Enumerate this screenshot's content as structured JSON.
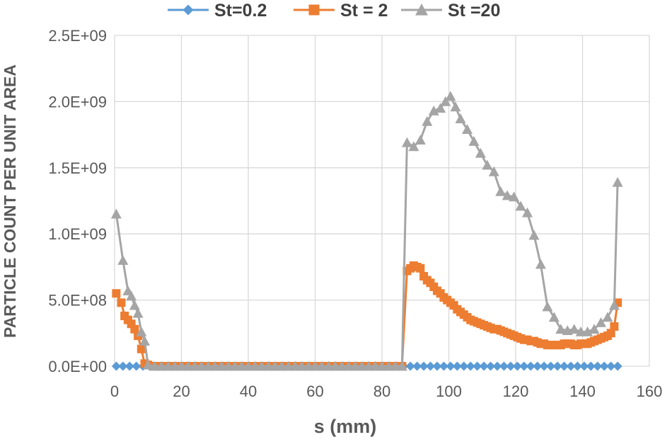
{
  "chart_data": {
    "type": "line",
    "title": "",
    "xlabel": "s (mm)",
    "ylabel": "PARTICLE COUNT PER UNIT AREA",
    "xlim": [
      0,
      160
    ],
    "ylim": [
      0,
      2500000000
    ],
    "x_ticks": [
      "0",
      "20",
      "40",
      "60",
      "80",
      "100",
      "120",
      "140",
      "160"
    ],
    "y_ticks": [
      "0.0E+00",
      "5.0E+08",
      "1.0E+09",
      "1.5E+09",
      "2.0E+09",
      "2.5E+09"
    ],
    "grid": true,
    "legend_position": "top",
    "series": [
      {
        "name": "St=0.2",
        "color": "#5B9BD5",
        "marker": "diamond",
        "x": [
          0.5,
          2.5,
          4.5,
          6.5,
          8.5,
          10.5,
          12.5,
          14.5,
          16.5,
          18.5,
          20.5,
          22.5,
          24.5,
          26.5,
          28.5,
          30.5,
          32.5,
          34.5,
          36.5,
          38.5,
          40.5,
          42.5,
          44.5,
          46.5,
          48.5,
          50.5,
          52.5,
          54.5,
          56.5,
          58.5,
          60.5,
          62.5,
          64.5,
          66.5,
          68.5,
          70.5,
          72.5,
          74.5,
          76.5,
          78.5,
          80.5,
          82.5,
          84.5,
          86.5,
          88.5,
          90.5,
          92.5,
          94.5,
          96.5,
          98.5,
          100.5,
          102.5,
          104.5,
          106.5,
          108.5,
          110.5,
          112.5,
          114.5,
          116.5,
          118.5,
          120.5,
          122.5,
          124.5,
          126.5,
          128.5,
          130.5,
          132.5,
          134.5,
          136.5,
          138.5,
          140.5,
          142.5,
          144.5,
          146.5,
          148.5,
          150.5
        ],
        "y": [
          0,
          0,
          0,
          0,
          0,
          0,
          0,
          0,
          0,
          0,
          0,
          0,
          0,
          0,
          0,
          0,
          0,
          0,
          0,
          0,
          0,
          0,
          0,
          0,
          0,
          0,
          0,
          0,
          0,
          0,
          0,
          0,
          0,
          0,
          0,
          0,
          0,
          0,
          0,
          0,
          0,
          0,
          0,
          0,
          0,
          0,
          0,
          0,
          0,
          0,
          0,
          0,
          0,
          0,
          0,
          0,
          0,
          0,
          0,
          0,
          0,
          0,
          0,
          0,
          0,
          0,
          0,
          0,
          0,
          0,
          0,
          0,
          0,
          0,
          0,
          0
        ]
      },
      {
        "name": "St = 2",
        "color": "#ED7D31",
        "marker": "square",
        "x": [
          0.5,
          2,
          3,
          4,
          5,
          6,
          7,
          8,
          9,
          10,
          12,
          14,
          16,
          18,
          20,
          22,
          24,
          26,
          28,
          30,
          32,
          34,
          36,
          38,
          40,
          42,
          44,
          46,
          48,
          50,
          52,
          54,
          56,
          58,
          60,
          62,
          64,
          66,
          68,
          70,
          72,
          74,
          76,
          78,
          80,
          82,
          84,
          86,
          87.5,
          88.5,
          89.5,
          90.5,
          91.5,
          92.5,
          93.5,
          94.5,
          95.5,
          96.5,
          97.5,
          98.5,
          99.5,
          100.5,
          101.5,
          102.5,
          103.5,
          104.5,
          105.5,
          106.5,
          107.5,
          108.5,
          109.5,
          110.5,
          111.5,
          112.5,
          113.5,
          114.5,
          115.5,
          116.5,
          117.5,
          118.5,
          119.5,
          120.5,
          121.5,
          122.5,
          123.5,
          124.5,
          125.5,
          126.5,
          127.5,
          128.5,
          129.5,
          130.5,
          131.5,
          132.5,
          133.5,
          134.5,
          135.5,
          136.5,
          137.5,
          138.5,
          139.5,
          140.5,
          141.5,
          142.5,
          143.5,
          144.5,
          145.5,
          146.5,
          147.5,
          148.5,
          149.5,
          150.5
        ],
        "y": [
          550000000,
          480000000,
          380000000,
          350000000,
          320000000,
          280000000,
          230000000,
          130000000,
          20000000,
          10000000,
          0,
          0,
          0,
          0,
          0,
          0,
          0,
          0,
          0,
          0,
          0,
          0,
          0,
          0,
          0,
          0,
          0,
          0,
          0,
          0,
          0,
          0,
          0,
          0,
          0,
          0,
          0,
          0,
          0,
          0,
          0,
          0,
          0,
          0,
          0,
          0,
          0,
          0,
          720000000,
          740000000,
          760000000,
          750000000,
          740000000,
          680000000,
          650000000,
          630000000,
          600000000,
          570000000,
          550000000,
          520000000,
          500000000,
          480000000,
          460000000,
          430000000,
          410000000,
          390000000,
          370000000,
          350000000,
          340000000,
          330000000,
          320000000,
          310000000,
          300000000,
          290000000,
          280000000,
          280000000,
          270000000,
          260000000,
          250000000,
          240000000,
          230000000,
          220000000,
          210000000,
          200000000,
          200000000,
          190000000,
          190000000,
          180000000,
          170000000,
          170000000,
          160000000,
          160000000,
          160000000,
          160000000,
          160000000,
          170000000,
          170000000,
          170000000,
          160000000,
          160000000,
          170000000,
          170000000,
          170000000,
          180000000,
          190000000,
          200000000,
          210000000,
          220000000,
          230000000,
          250000000,
          300000000,
          480000000
        ]
      },
      {
        "name": "St =20",
        "color": "#A5A5A5",
        "marker": "triangle",
        "x": [
          0.5,
          2.5,
          4,
          5,
          6,
          7,
          8,
          9,
          10,
          12,
          14,
          16,
          18,
          20,
          22,
          24,
          26,
          28,
          30,
          32,
          34,
          36,
          38,
          40,
          42,
          44,
          46,
          48,
          50,
          52,
          54,
          56,
          58,
          60,
          62,
          64,
          66,
          68,
          70,
          72,
          74,
          76,
          78,
          80,
          82,
          84,
          86,
          87.5,
          89.5,
          91.5,
          93.5,
          95.5,
          97.5,
          99,
          100.5,
          102,
          103.5,
          105.5,
          107.5,
          109.5,
          111.5,
          113.5,
          115.5,
          117.5,
          119.5,
          121.5,
          123.5,
          125.5,
          127.5,
          129.5,
          131.5,
          133.5,
          135.5,
          137.5,
          139.5,
          141.5,
          143.5,
          145.5,
          147.5,
          149.5,
          150.5
        ],
        "y": [
          1150000000,
          800000000,
          570000000,
          530000000,
          460000000,
          400000000,
          260000000,
          190000000,
          10000000,
          0,
          0,
          0,
          0,
          0,
          0,
          0,
          0,
          0,
          0,
          0,
          0,
          0,
          0,
          0,
          0,
          0,
          0,
          0,
          0,
          0,
          0,
          0,
          0,
          0,
          0,
          0,
          0,
          0,
          0,
          0,
          0,
          0,
          0,
          0,
          0,
          0,
          0,
          1690000000,
          1660000000,
          1710000000,
          1850000000,
          1930000000,
          1950000000,
          2000000000,
          2040000000,
          1960000000,
          1870000000,
          1790000000,
          1700000000,
          1610000000,
          1520000000,
          1470000000,
          1320000000,
          1290000000,
          1280000000,
          1210000000,
          1160000000,
          990000000,
          770000000,
          450000000,
          370000000,
          280000000,
          270000000,
          280000000,
          260000000,
          260000000,
          280000000,
          330000000,
          370000000,
          460000000,
          1390000000
        ]
      }
    ]
  }
}
